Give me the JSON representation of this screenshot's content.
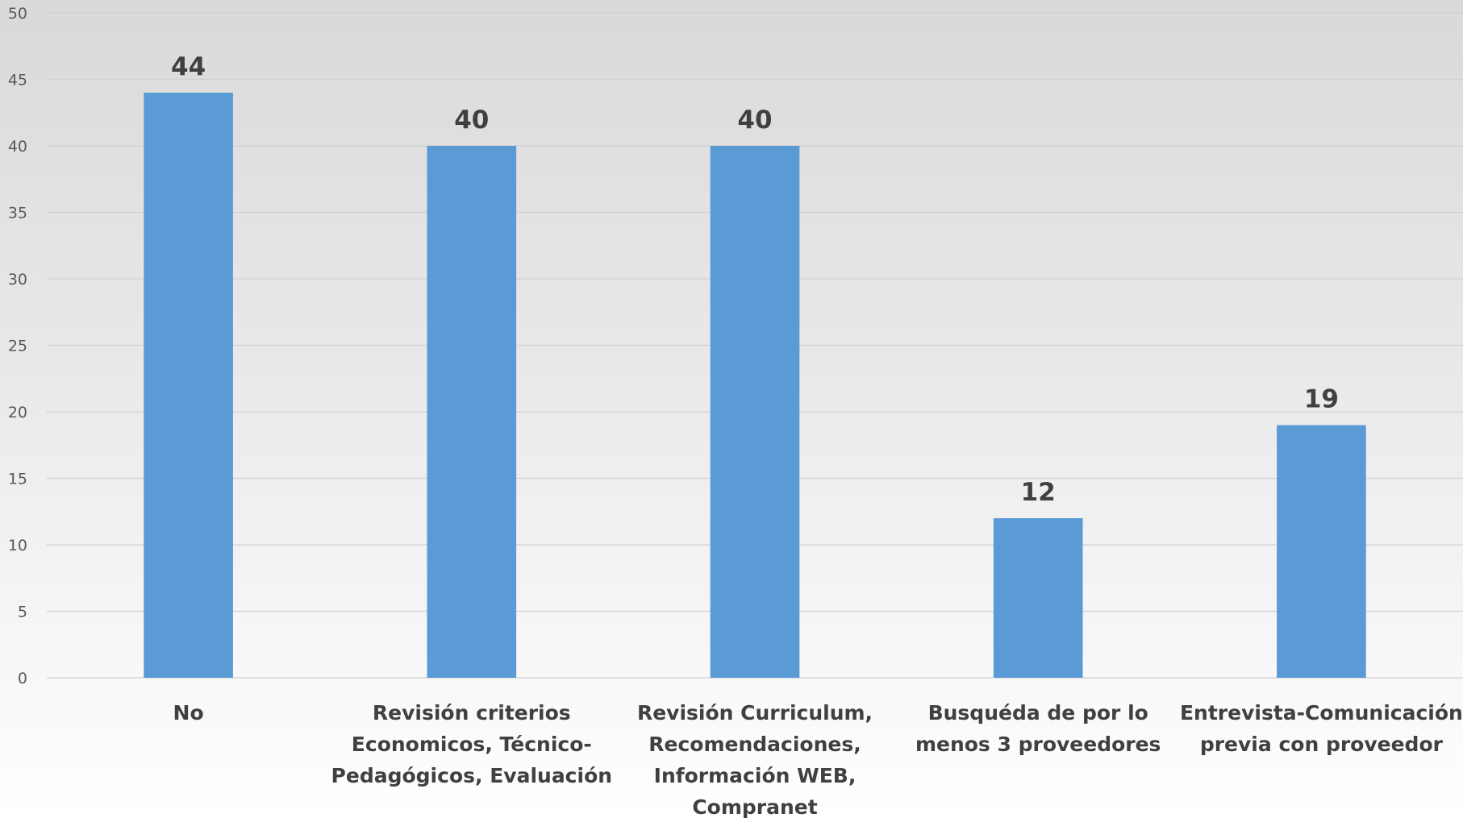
{
  "chart_data": {
    "type": "bar",
    "title": "",
    "xlabel": "",
    "ylabel": "",
    "ylim": [
      0,
      50
    ],
    "ytick_step": 5,
    "grid": true,
    "bar_color": "#5b9bd5",
    "grid_color": "#d0d0d0",
    "categories": [
      [
        "No"
      ],
      [
        "Revisión criterios",
        "Economicos, Técnico-",
        "Pedagógicos, Evaluación"
      ],
      [
        "Revisión Curriculum,",
        "Recomendaciones,",
        "Información WEB,",
        "Compranet"
      ],
      [
        "Busquéda de por lo",
        "menos 3 proveedores"
      ],
      [
        "Entrevista-Comunicación",
        "previa con proveedor"
      ]
    ],
    "values": [
      44,
      40,
      40,
      12,
      19
    ],
    "data_labels": [
      "44",
      "40",
      "40",
      "12",
      "19"
    ]
  }
}
